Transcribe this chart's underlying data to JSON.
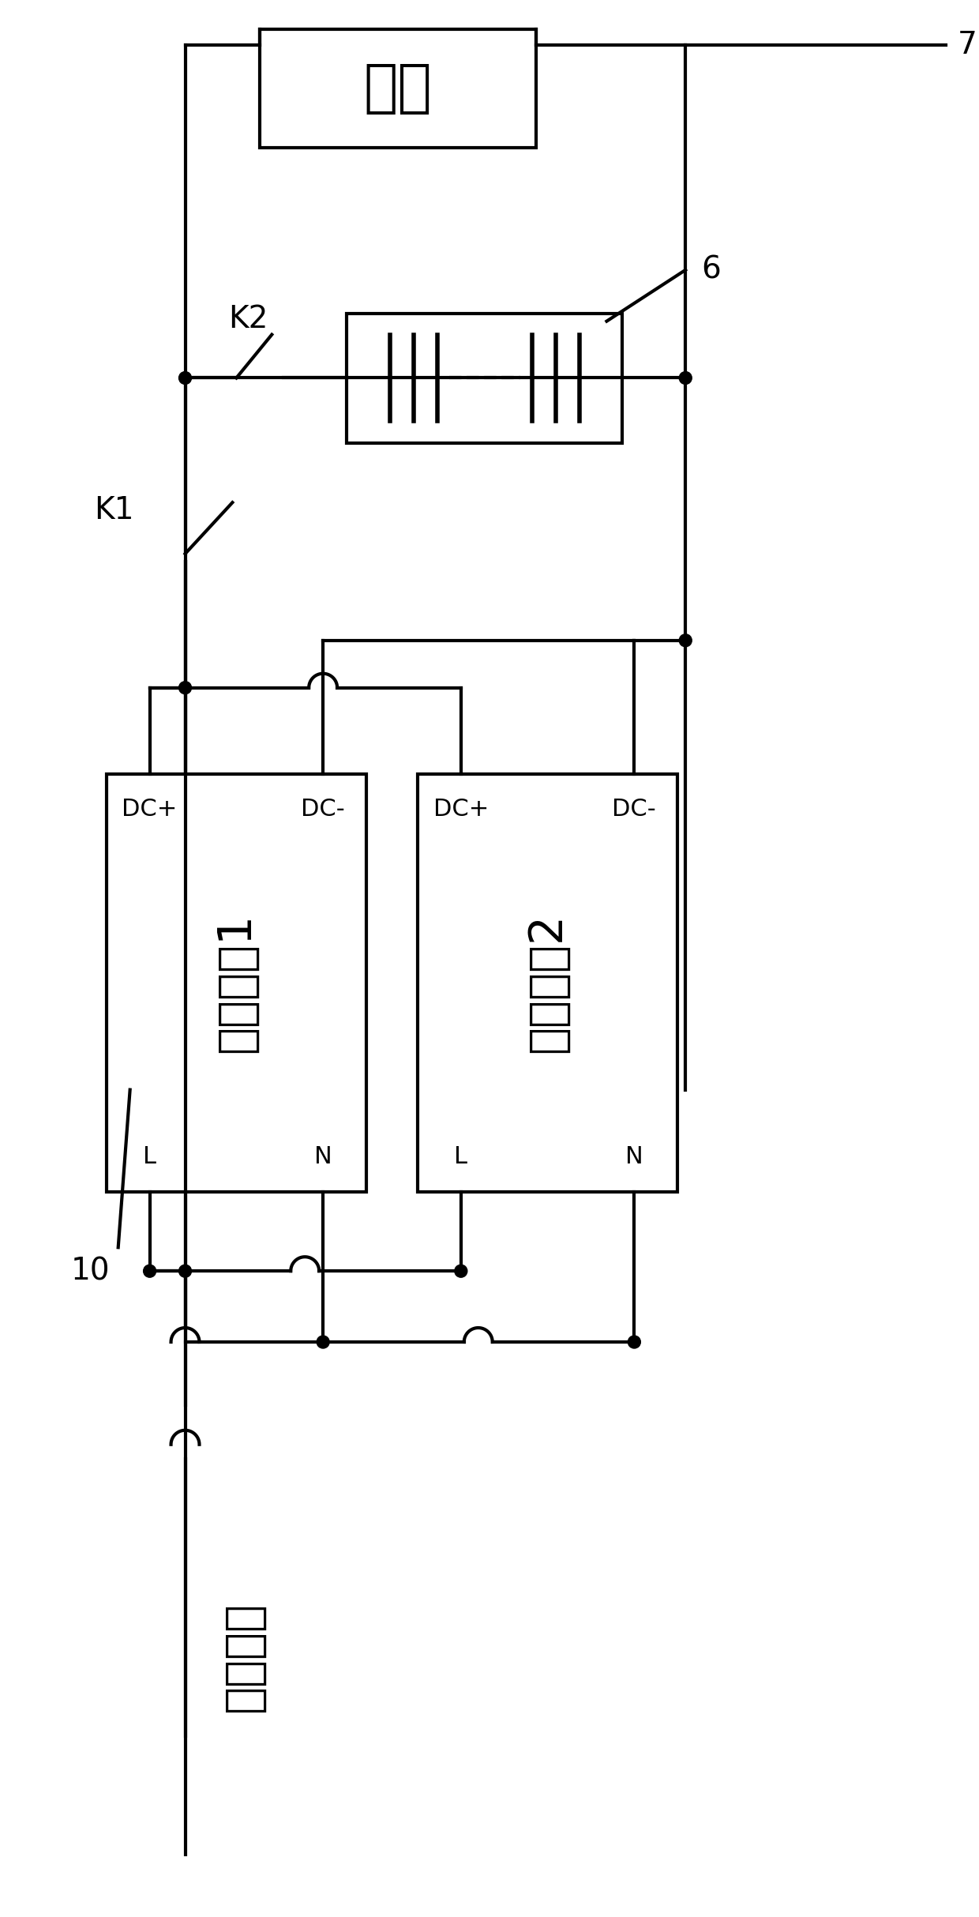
{
  "fig_width": 12.4,
  "fig_height": 24.27,
  "dpi": 100,
  "bg_color": "#ffffff",
  "line_color": "#000000",
  "line_width": 3.0,
  "texts": {
    "fuzai": "负载",
    "k1": "K1",
    "k2": "K2",
    "module1": "现有模块1",
    "module2": "现有模块2",
    "ac_input": "交流输入",
    "label6": "6",
    "label7": "7",
    "label10": "10",
    "dc_plus1": "DC+",
    "dc_minus1": "DC-",
    "l1": "L",
    "n1": "N",
    "dc_plus2": "DC+",
    "dc_minus2": "DC-",
    "l2": "L",
    "n2": "N"
  },
  "font_size_title": 52,
  "font_size_large": 42,
  "font_size_medium": 32,
  "font_size_small": 22,
  "font_size_label": 28
}
